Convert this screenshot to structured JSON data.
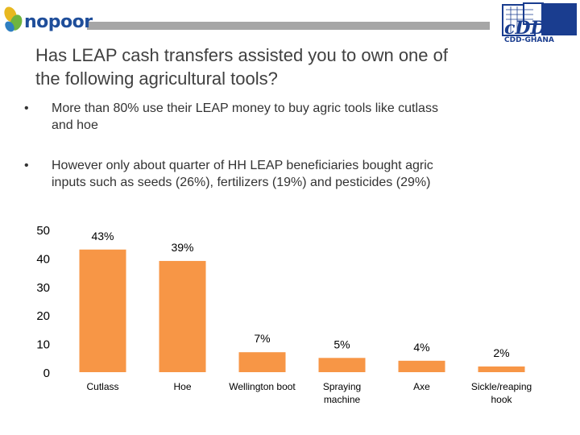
{
  "header": {
    "left_logo_text": "nopoor",
    "right_logo_text": "cDD",
    "right_logo_subtext": "CDD-GHANA",
    "left_logo_icon": "nopoor-leaf-logo",
    "right_logo_icon": "cdd-ghana-logo"
  },
  "title": {
    "line1": "Has LEAP cash transfers assisted you to own one of",
    "line2": "the following agricultural tools?"
  },
  "bullets": [
    {
      "marker": "•",
      "line1": "More than 80% use their LEAP money to buy agric tools like cutlass",
      "line2": "and hoe"
    },
    {
      "marker": "•",
      "line1": "However only about quarter of HH LEAP beneficiaries  bought agric",
      "line2": "inputs  such as seeds (26%), fertilizers (19%) and pesticides (29%)"
    }
  ],
  "colors": {
    "bar": "#f79646",
    "header_bar": "#a6a6a6",
    "text": "#404040"
  },
  "chart_data": {
    "type": "bar",
    "categories": [
      "Cutlass",
      "Hoe",
      "Wellington boot",
      "Spraying machine",
      "Axe",
      "Sickle/reaping hook"
    ],
    "category_lines": [
      [
        "Cutlass"
      ],
      [
        "Hoe"
      ],
      [
        "Wellington boot"
      ],
      [
        "Spraying",
        "machine"
      ],
      [
        "Axe"
      ],
      [
        "Sickle/reaping",
        "hook"
      ]
    ],
    "values": [
      43,
      39,
      7,
      5,
      4,
      2
    ],
    "data_labels": [
      "43%",
      "39%",
      "7%",
      "5%",
      "4%",
      "2%"
    ],
    "yticks": [
      0,
      10,
      20,
      30,
      40,
      50
    ],
    "ylim": [
      0,
      50
    ],
    "grid": false,
    "legend": "none"
  }
}
